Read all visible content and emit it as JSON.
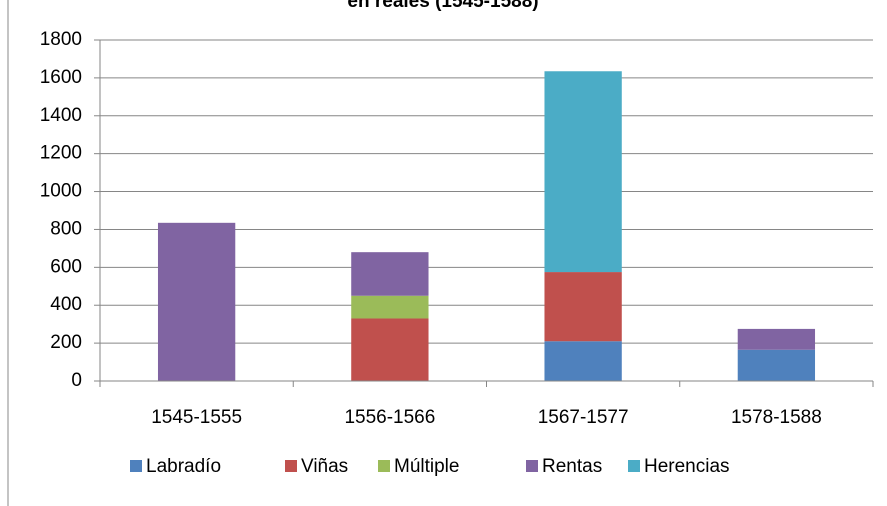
{
  "chart_data": {
    "type": "stacked_bar",
    "title": "en reales (1545-1588)",
    "categories": [
      "1545-1555",
      "1556-1566",
      "1567-1577",
      "1578-1588"
    ],
    "series": [
      {
        "name": "Labradío",
        "color": "#4f81bd",
        "values": [
          0,
          0,
          210,
          165
        ]
      },
      {
        "name": "Viñas",
        "color": "#c0504d",
        "values": [
          0,
          330,
          365,
          0
        ]
      },
      {
        "name": "Múltiple",
        "color": "#9bbb59",
        "values": [
          0,
          120,
          0,
          0
        ]
      },
      {
        "name": "Rentas",
        "color": "#8064a2",
        "values": [
          835,
          230,
          0,
          110
        ]
      },
      {
        "name": "Herencias",
        "color": "#4bacc6",
        "values": [
          0,
          0,
          1060,
          0
        ]
      }
    ],
    "ylim": [
      0,
      1800
    ],
    "yticks": [
      0,
      200,
      400,
      600,
      800,
      1000,
      1200,
      1400,
      1600,
      1800
    ],
    "grid": true,
    "legend": "bottom"
  }
}
